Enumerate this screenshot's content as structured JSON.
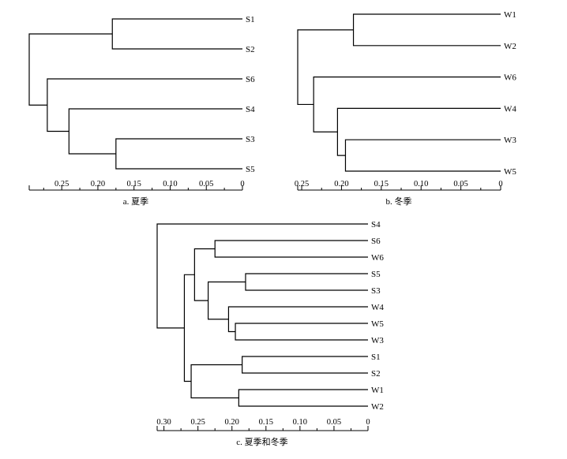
{
  "chart_data": [
    {
      "type": "dendrogram",
      "caption": "a. 夏季",
      "leaves": [
        "S1",
        "S2",
        "S6",
        "S4",
        "S3",
        "S5"
      ],
      "merges": [
        {
          "a": "S1",
          "b": "S2",
          "height": 0.18
        },
        {
          "a": "S3",
          "b": "S5",
          "height": 0.175
        },
        {
          "a": "S4",
          "b": "m1",
          "height": 0.24
        },
        {
          "a": "S6",
          "b": "m2",
          "height": 0.27
        },
        {
          "a": "m0",
          "b": "m3",
          "height": 0.295
        }
      ],
      "xlim": [
        0.295,
        0
      ],
      "ticks": [
        0.25,
        0.2,
        0.15,
        0.1,
        0.05,
        0
      ],
      "tick_labels": [
        "0.25",
        "0.20",
        "0.15",
        "0.10",
        "0.05",
        "0"
      ]
    },
    {
      "type": "dendrogram",
      "caption": "b. 冬季",
      "leaves": [
        "W1",
        "W2",
        "W6",
        "W4",
        "W3",
        "W5"
      ],
      "merges": [
        {
          "a": "W1",
          "b": "W2",
          "height": 0.185
        },
        {
          "a": "W3",
          "b": "W5",
          "height": 0.195
        },
        {
          "a": "W4",
          "b": "m1",
          "height": 0.205
        },
        {
          "a": "W6",
          "b": "m2",
          "height": 0.235
        },
        {
          "a": "m0",
          "b": "m3",
          "height": 0.255
        }
      ],
      "xlim": [
        0.255,
        0
      ],
      "ticks": [
        0.25,
        0.2,
        0.15,
        0.1,
        0.05,
        0
      ],
      "tick_labels": [
        "0.25",
        "0.20",
        "0.15",
        "0.10",
        "0.05",
        "0"
      ]
    },
    {
      "type": "dendrogram",
      "caption": "c. 夏季和冬季",
      "leaves": [
        "S4",
        "S6",
        "W6",
        "S5",
        "S3",
        "W4",
        "W5",
        "W3",
        "S1",
        "S2",
        "W1",
        "W2"
      ],
      "merges": [
        {
          "a": "S6",
          "b": "W6",
          "height": 0.225
        },
        {
          "a": "S5",
          "b": "S3",
          "height": 0.18
        },
        {
          "a": "W5",
          "b": "W3",
          "height": 0.195
        },
        {
          "a": "W4",
          "b": "m2",
          "height": 0.205
        },
        {
          "a": "m1",
          "b": "m3",
          "height": 0.235
        },
        {
          "a": "m0",
          "b": "m4",
          "height": 0.255
        },
        {
          "a": "S1",
          "b": "S2",
          "height": 0.185
        },
        {
          "a": "W1",
          "b": "W2",
          "height": 0.19
        },
        {
          "a": "m6",
          "b": "m7",
          "height": 0.26
        },
        {
          "a": "m5",
          "b": "m8",
          "height": 0.27
        },
        {
          "a": "S4",
          "b": "m9",
          "height": 0.31
        }
      ],
      "xlim": [
        0.31,
        0
      ],
      "ticks": [
        0.3,
        0.25,
        0.2,
        0.15,
        0.1,
        0.05,
        0
      ],
      "tick_labels": [
        "0.30",
        "0.25",
        "0.20",
        "0.15",
        "0.10",
        "0.05",
        "0"
      ]
    }
  ]
}
